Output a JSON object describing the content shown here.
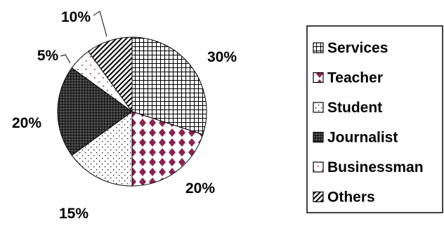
{
  "chart_data": {
    "type": "pie",
    "title": "",
    "start_angle_deg": 0,
    "direction": "clockwise",
    "legend_position": "right",
    "slices": [
      {
        "label": "Services",
        "value": 30,
        "display": "30%",
        "pattern": "grid"
      },
      {
        "label": "Teacher",
        "value": 20,
        "display": "20%",
        "pattern": "diamonds",
        "color": "#8b2252"
      },
      {
        "label": "Student",
        "value": 15,
        "display": "15%",
        "pattern": "dots"
      },
      {
        "label": "Journalist",
        "value": 20,
        "display": "20%",
        "pattern": "dense-dots"
      },
      {
        "label": "Businessman",
        "value": 5,
        "display": "5%",
        "pattern": "sparse-dots",
        "color": "#8b2252"
      },
      {
        "label": "Others",
        "value": 10,
        "display": "10%",
        "pattern": "diagonal"
      }
    ]
  }
}
